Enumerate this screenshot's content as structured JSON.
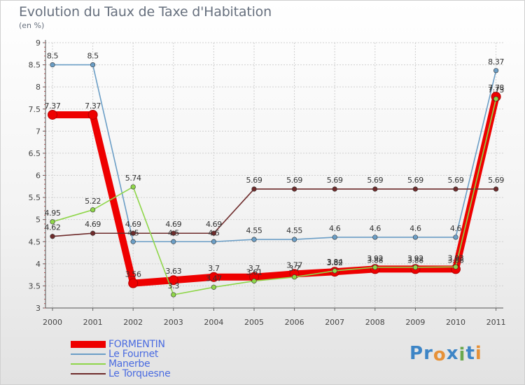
{
  "title": "Evolution du Taux de Taxe d'Habitation",
  "unit": "(en %)",
  "brand": {
    "text": "Proxiti",
    "letters": [
      {
        "ch": "P",
        "color": "#3d85c6"
      },
      {
        "ch": "r",
        "color": "#3d85c6"
      },
      {
        "ch": "o",
        "color": "#e69138"
      },
      {
        "ch": "x",
        "color": "#3d85c6"
      },
      {
        "ch": "i",
        "color": "#6aa84f"
      },
      {
        "ch": "t",
        "color": "#3d85c6"
      },
      {
        "ch": "i",
        "color": "#e69138"
      }
    ]
  },
  "chart_data": {
    "type": "line",
    "title": "Evolution du Taux de Taxe d'Habitation",
    "ylabel": "(en %)",
    "xlabel": "",
    "x": [
      "2000",
      "2001",
      "2002",
      "2003",
      "2004",
      "2005",
      "2006",
      "2007",
      "2008",
      "2009",
      "2010",
      "2011"
    ],
    "ylim": [
      3,
      9
    ],
    "yticks": [
      "3",
      "3.5",
      "4",
      "4.5",
      "5",
      "5.5",
      "6",
      "6.5",
      "7",
      "7.5",
      "8",
      "8.5",
      "9"
    ],
    "grid": true,
    "legend_position": "bottom-left",
    "series": [
      {
        "name": "FORMENTIN",
        "color": "#ee0000",
        "emphasis": true,
        "values": [
          7.37,
          7.37,
          3.56,
          3.63,
          3.7,
          3.7,
          3.77,
          3.82,
          3.88,
          3.88,
          3.88,
          7.78
        ],
        "labels": [
          "7.37",
          "7.37",
          "3.56",
          "3.63",
          "3.7",
          "3.7",
          "3.77",
          "3.82",
          "3.88",
          "3.88",
          "3.88",
          "7.78"
        ]
      },
      {
        "name": "Le Fournet",
        "color": "#6b9ec6",
        "values": [
          8.5,
          8.5,
          4.5,
          4.5,
          4.5,
          4.55,
          4.55,
          4.6,
          4.6,
          4.6,
          4.6,
          8.37
        ],
        "labels": [
          "8.5",
          "8.5",
          "4.5",
          "4.5",
          "4.5",
          "4.55",
          "4.55",
          "4.6",
          "4.6",
          "4.6",
          "4.6",
          "8.37"
        ]
      },
      {
        "name": "Manerbe",
        "color": "#8fd64a",
        "values": [
          4.95,
          5.22,
          5.74,
          3.3,
          3.47,
          3.61,
          3.7,
          3.84,
          3.92,
          3.92,
          3.93,
          7.73
        ],
        "labels": [
          "4.95",
          "5.22",
          "5.74",
          "3.3",
          "3.47",
          "3.61",
          "3.7",
          "3.84",
          "3.92",
          "3.92",
          "3.93",
          "7.73"
        ]
      },
      {
        "name": "Le Torquesne",
        "color": "#6e2b2b",
        "values": [
          4.62,
          4.69,
          4.69,
          4.69,
          4.69,
          5.69,
          5.69,
          5.69,
          5.69,
          5.69,
          5.69,
          5.69
        ],
        "labels": [
          "4.62",
          "4.69",
          "4.69",
          "4.69",
          "4.69",
          "5.69",
          "5.69",
          "5.69",
          "5.69",
          "5.69",
          "5.69",
          "5.69"
        ]
      }
    ]
  }
}
